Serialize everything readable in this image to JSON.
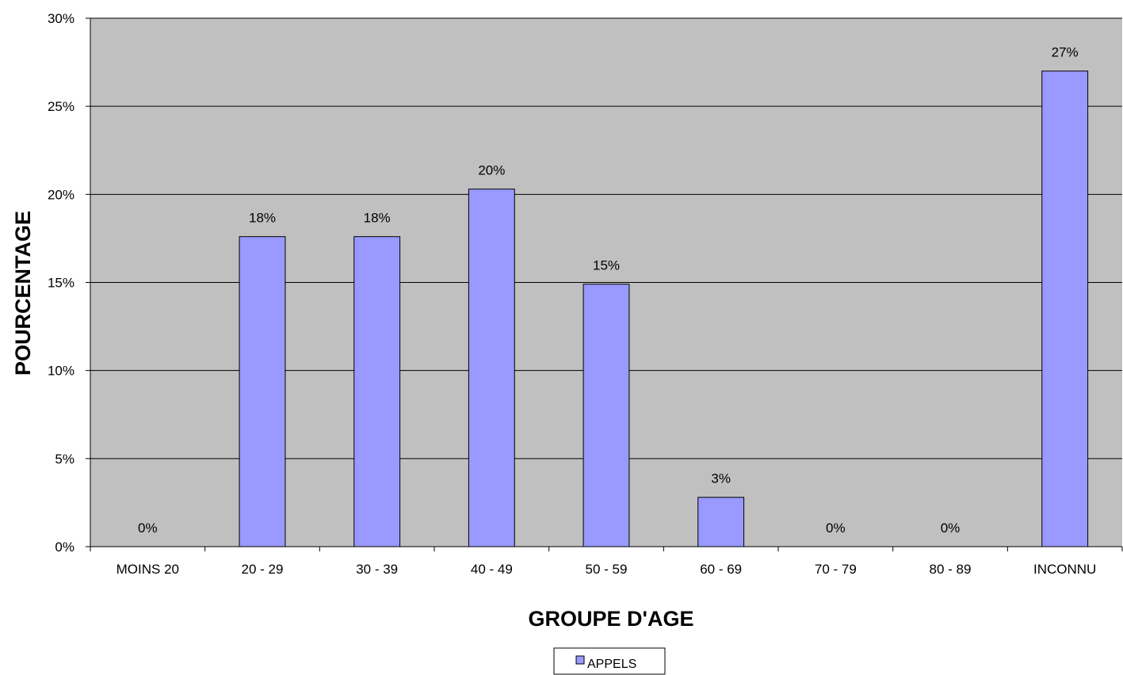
{
  "chart_data": {
    "type": "bar",
    "title": "",
    "xlabel": "GROUPE D'AGE",
    "ylabel": "POURCENTAGE",
    "categories": [
      "MOINS 20",
      "20 - 29",
      "30 - 39",
      "40 - 49",
      "50 - 59",
      "60 - 69",
      "70 - 79",
      "80 - 89",
      "INCONNU"
    ],
    "series": [
      {
        "name": "APPELS",
        "values": [
          0,
          17.6,
          17.6,
          20.3,
          14.9,
          2.8,
          0,
          0,
          27.0
        ],
        "data_labels": [
          "0%",
          "18%",
          "18%",
          "20%",
          "15%",
          "3%",
          "0%",
          "0%",
          "27%"
        ]
      }
    ],
    "ylim": [
      0,
      30
    ],
    "yticks": [
      0,
      5,
      10,
      15,
      20,
      25,
      30
    ],
    "ytick_labels": [
      "0%",
      "5%",
      "10%",
      "15%",
      "20%",
      "25%",
      "30%"
    ],
    "grid": true,
    "legend_position": "bottom",
    "colors": {
      "bar_fill": "#9999ff",
      "plot_background": "#c0c0c0",
      "gridline": "#000000"
    }
  }
}
